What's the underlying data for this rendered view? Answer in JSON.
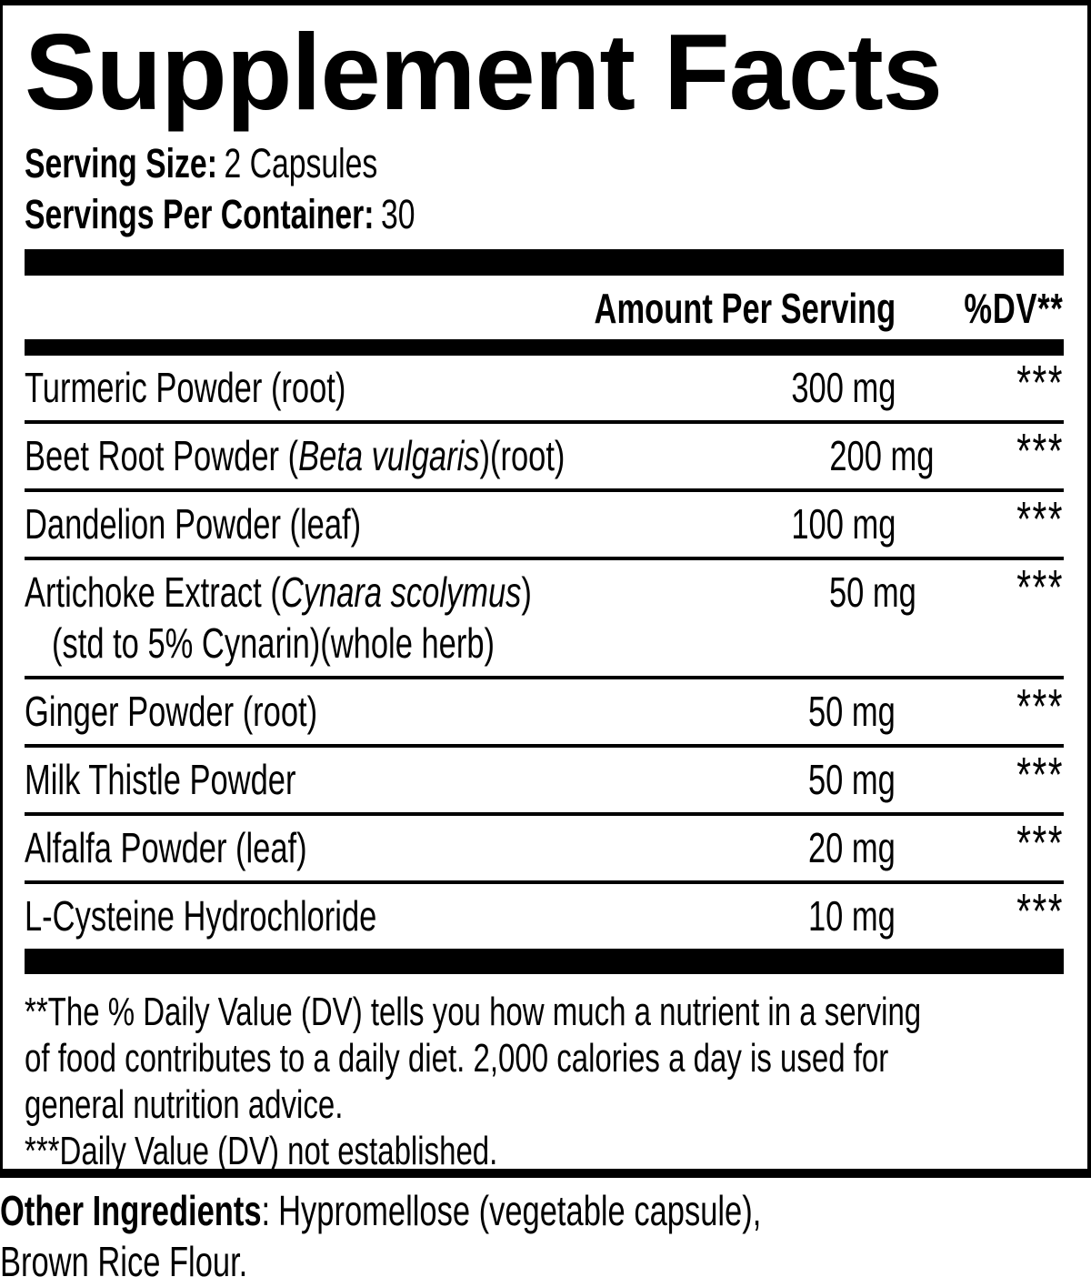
{
  "title": "Supplement Facts",
  "serving": {
    "size_label": "Serving Size:",
    "size_value": "2 Capsules",
    "per_container_label": "Servings Per Container:",
    "per_container_value": "30"
  },
  "table": {
    "amount_header": "Amount Per Serving",
    "dv_header": "%DV**",
    "rows": [
      {
        "name_pre": "Turmeric Powder (root)",
        "name_italic": "",
        "name_post": "",
        "amount": "300 mg",
        "dv": "***"
      },
      {
        "name_pre": "Beet Root Powder (",
        "name_italic": "Beta vulgaris",
        "name_post": ")(root)",
        "amount": "200 mg",
        "dv": "***"
      },
      {
        "name_pre": "Dandelion Powder (leaf)",
        "name_italic": "",
        "name_post": "",
        "amount": "100 mg",
        "dv": "***"
      },
      {
        "name_pre": "Artichoke Extract (",
        "name_italic": "Cynara scolymus",
        "name_post": ")",
        "sub": "(std to 5% Cynarin)(whole herb)",
        "amount": "50 mg",
        "dv": "***"
      },
      {
        "name_pre": "Ginger Powder (root)",
        "name_italic": "",
        "name_post": "",
        "amount": "50 mg",
        "dv": "***"
      },
      {
        "name_pre": "Milk Thistle Powder",
        "name_italic": "",
        "name_post": "",
        "amount": "50 mg",
        "dv": "***"
      },
      {
        "name_pre": "Alfalfa Powder (leaf)",
        "name_italic": "",
        "name_post": "",
        "amount": "20 mg",
        "dv": "***"
      },
      {
        "name_pre": "L-Cysteine Hydrochloride",
        "name_italic": "",
        "name_post": "",
        "amount": "10 mg",
        "dv": "***"
      }
    ]
  },
  "footnote": {
    "lines": [
      "**The % Daily Value (DV) tells you how much a nutrient in a serving",
      "of food contributes to a daily diet. 2,000 calories a day is used for",
      "general nutrition advice.",
      "***Daily Value (DV) not established."
    ]
  },
  "other_ingredients": {
    "label": "Other Ingredients",
    "separator": ":",
    "line1_rest": "Hypromellose (vegetable capsule),",
    "line2": "Brown Rice Flour."
  },
  "colors": {
    "text": "#000000",
    "background": "#ffffff",
    "rule": "#000000"
  }
}
